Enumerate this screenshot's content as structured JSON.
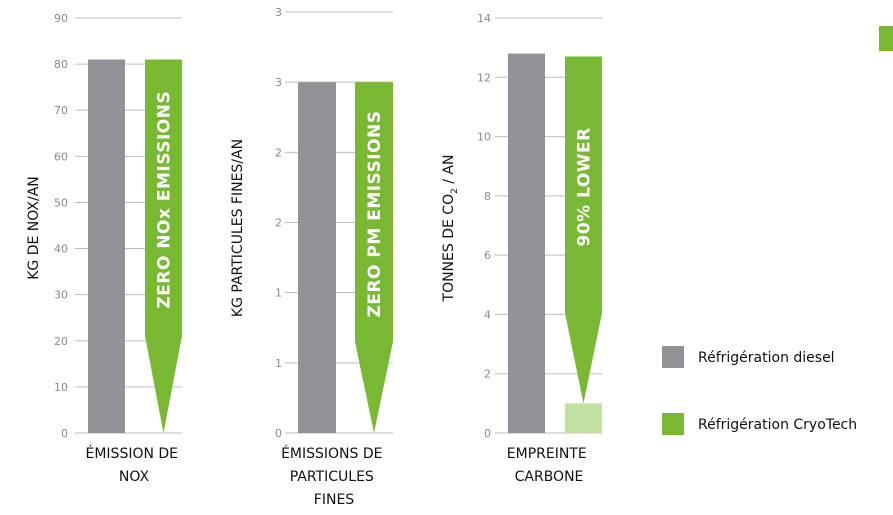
{
  "colors": {
    "diesel": "#929296",
    "cryotech": "#78b833",
    "cryotech_light": "#c3e0a3",
    "grid": "#bdbdbd",
    "tick": "#8a8a8a"
  },
  "legend": {
    "placement": "right",
    "items": [
      {
        "label": "Réfrigération diesel",
        "color": "#929296"
      },
      {
        "label": "Réfrigération CryoTech",
        "color": "#78b833"
      }
    ]
  },
  "chart_data": [
    {
      "type": "bar",
      "ylabel": "KG DE NOX/AN",
      "ylim": [
        0,
        90
      ],
      "yticks": [
        "0",
        "10",
        "20",
        "30",
        "40",
        "50",
        "60",
        "70",
        "80",
        "90"
      ],
      "category_lines": [
        "ÉMISSION DE",
        "NOX"
      ],
      "series": [
        {
          "name": "Réfrigération diesel",
          "values": [
            81
          ]
        },
        {
          "name": "Réfrigération CryoTech",
          "values": [
            0
          ]
        }
      ],
      "arrow": {
        "from": 81,
        "to": 0,
        "label": "ZERO NOx EMISSIONS"
      }
    },
    {
      "type": "bar",
      "ylabel": "KG PARTICULES FINES/AN",
      "ylim": [
        0,
        3
      ],
      "yticks": [
        "0",
        "1",
        "1",
        "2",
        "2",
        "3",
        "3"
      ],
      "category_lines": [
        "ÉMISSIONS DE",
        "PARTICULES",
        "FINES"
      ],
      "series": [
        {
          "name": "Réfrigération diesel",
          "values": [
            2.5
          ]
        },
        {
          "name": "Réfrigération CryoTech",
          "values": [
            0
          ]
        }
      ],
      "arrow": {
        "from": 2.5,
        "to": 0,
        "label": "ZERO PM EMISSIONS"
      }
    },
    {
      "type": "bar",
      "ylabel_main": "TONNES DE CO",
      "ylabel_sub": "2",
      "ylabel_tail": " / AN",
      "ylim": [
        0,
        14
      ],
      "yticks": [
        "0",
        "2",
        "4",
        "6",
        "8",
        "10",
        "12",
        "14"
      ],
      "category_lines": [
        "EMPREINTE",
        "CARBONE"
      ],
      "series": [
        {
          "name": "Réfrigération diesel",
          "values": [
            12.8
          ]
        },
        {
          "name": "Réfrigération CryoTech",
          "values": [
            1
          ]
        }
      ],
      "arrow": {
        "from": 12.7,
        "to": 1,
        "label": "90% LOWER"
      }
    }
  ]
}
